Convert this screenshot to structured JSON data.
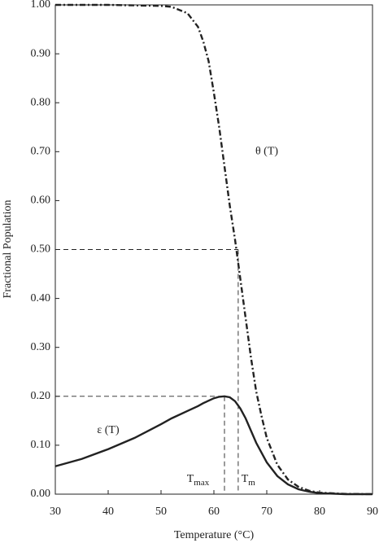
{
  "chart_data": {
    "type": "line",
    "xlabel": "Temperature (°C)",
    "ylabel": "Fractional Population",
    "x": [
      30,
      35,
      40,
      45,
      50,
      52,
      55,
      57,
      58,
      59,
      60,
      61,
      62,
      63,
      64,
      65,
      66,
      67,
      68,
      69,
      70,
      72,
      74,
      76,
      78,
      80,
      85,
      90
    ],
    "series": [
      {
        "name": "θ (T)",
        "color": "#222222",
        "dash": "dash-dot",
        "values": [
          1.0,
          1.0,
          1.0,
          0.999,
          0.998,
          0.996,
          0.983,
          0.955,
          0.925,
          0.885,
          0.82,
          0.75,
          0.67,
          0.59,
          0.52,
          0.44,
          0.36,
          0.28,
          0.21,
          0.16,
          0.115,
          0.06,
          0.03,
          0.015,
          0.007,
          0.003,
          0.0005,
          0
        ],
        "label_at": [
          70,
          0.7
        ]
      },
      {
        "name": "ε (T)",
        "color": "#222222",
        "dash": "solid",
        "values": [
          0.057,
          0.072,
          0.092,
          0.115,
          0.143,
          0.155,
          0.17,
          0.18,
          0.186,
          0.191,
          0.196,
          0.199,
          0.2,
          0.198,
          0.19,
          0.175,
          0.155,
          0.13,
          0.105,
          0.085,
          0.065,
          0.037,
          0.02,
          0.01,
          0.005,
          0.002,
          0,
          0
        ],
        "label_at": [
          40,
          0.13
        ]
      }
    ],
    "reference_lines": [
      {
        "x": 64.6,
        "y": 0.5,
        "text": "T",
        "sub": "m",
        "label_at": [
          66.5,
          0.03
        ]
      },
      {
        "x": 62,
        "y": 0.2,
        "text": "T",
        "sub": "max",
        "label_at": [
          57,
          0.03
        ]
      }
    ],
    "xlim": [
      30,
      90
    ],
    "ylim": [
      0,
      1
    ],
    "xticks": [
      30,
      40,
      50,
      60,
      70,
      80,
      90
    ],
    "yticks": [
      {
        "value": 0,
        "label": "0.00"
      },
      {
        "value": 0.1,
        "label": "0.10"
      },
      {
        "value": 0.2,
        "label": "0.20"
      },
      {
        "value": 0.3,
        "label": "0.30"
      },
      {
        "value": 0.4,
        "label": "0.40"
      },
      {
        "value": 0.5,
        "label": "0.50"
      },
      {
        "value": 0.6,
        "label": "0.60"
      },
      {
        "value": 0.7,
        "label": "0.70"
      },
      {
        "value": 0.8,
        "label": "0.80"
      },
      {
        "value": 0.9,
        "label": "0.90"
      },
      {
        "value": 1,
        "label": "1.00"
      }
    ]
  }
}
